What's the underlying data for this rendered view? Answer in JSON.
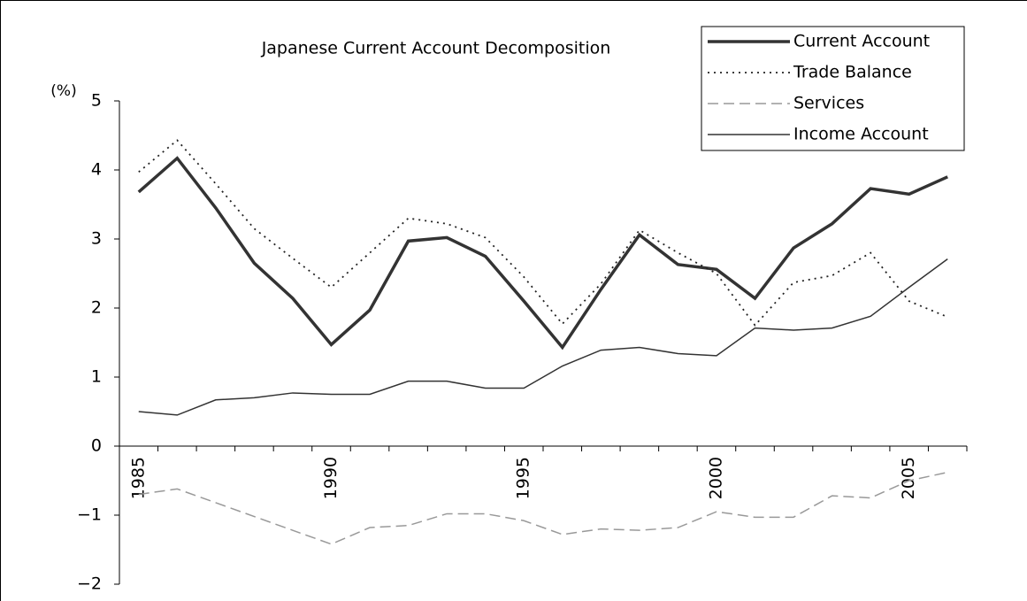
{
  "chart_data": {
    "type": "line",
    "title": "Japanese Current Account Decomposition",
    "y_label": "(%)",
    "x": [
      1985,
      1986,
      1987,
      1988,
      1989,
      1990,
      1991,
      1992,
      1993,
      1994,
      1995,
      1996,
      1997,
      1998,
      1999,
      2000,
      2001,
      2002,
      2003,
      2004,
      2005,
      2006
    ],
    "xlim": [
      1984.5,
      2006.5
    ],
    "xticks": [
      1985,
      1990,
      1995,
      2000,
      2005
    ],
    "ylim": [
      -2,
      5
    ],
    "yticks": [
      {
        "value": -2,
        "label": "−2"
      },
      {
        "value": -1,
        "label": "−1"
      },
      0,
      1,
      2,
      3,
      4,
      5
    ],
    "legend": "top-right",
    "series": [
      {
        "name": "Current Account",
        "color": "#333333",
        "style": "thick",
        "values": [
          3.68,
          4.17,
          3.45,
          2.65,
          2.14,
          1.47,
          1.97,
          2.97,
          3.02,
          2.75,
          2.1,
          1.43,
          2.27,
          3.06,
          2.63,
          2.56,
          2.14,
          2.87,
          3.22,
          3.73,
          3.65,
          3.9
        ]
      },
      {
        "name": "Trade Balance",
        "color": "#222222",
        "style": "dotted",
        "values": [
          3.97,
          4.43,
          3.8,
          3.15,
          2.72,
          2.3,
          2.8,
          3.3,
          3.22,
          3.02,
          2.45,
          1.77,
          2.35,
          3.13,
          2.8,
          2.5,
          1.75,
          2.37,
          2.47,
          2.8,
          2.1,
          1.87
        ]
      },
      {
        "name": "Services",
        "color": "#999999",
        "style": "dashed",
        "values": [
          -0.7,
          -0.62,
          -0.82,
          -1.02,
          -1.22,
          -1.42,
          -1.18,
          -1.15,
          -0.98,
          -0.98,
          -1.08,
          -1.28,
          -1.2,
          -1.22,
          -1.18,
          -0.95,
          -1.03,
          -1.03,
          -0.72,
          -0.75,
          -0.5,
          -0.38
        ]
      },
      {
        "name": "Income Account",
        "color": "#333333",
        "style": "solid",
        "values": [
          0.5,
          0.45,
          0.67,
          0.7,
          0.77,
          0.75,
          0.75,
          0.94,
          0.94,
          0.84,
          0.84,
          1.16,
          1.39,
          1.43,
          1.34,
          1.31,
          1.71,
          1.68,
          1.71,
          1.88,
          2.3,
          2.71
        ]
      }
    ]
  }
}
